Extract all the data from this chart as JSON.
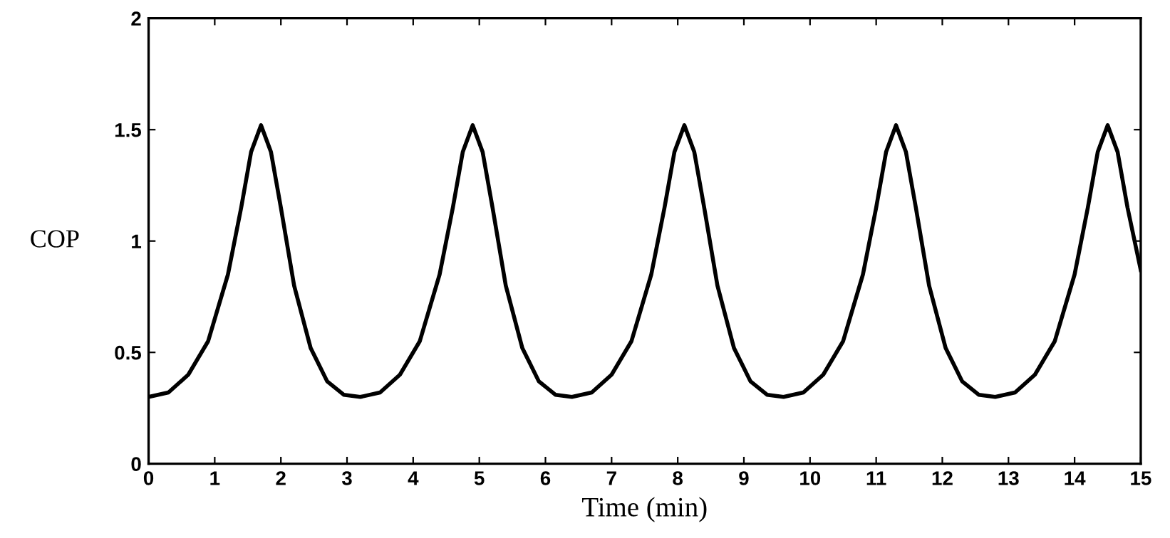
{
  "chart_data": {
    "type": "line",
    "xlabel": "Time (min)",
    "ylabel": "COP",
    "xlim": [
      0,
      15
    ],
    "ylim": [
      0,
      2
    ],
    "xticks": [
      0,
      1,
      2,
      3,
      4,
      5,
      6,
      7,
      8,
      9,
      10,
      11,
      12,
      13,
      14,
      15
    ],
    "yticks": [
      0,
      0.5,
      1,
      1.5,
      2
    ],
    "grid": false,
    "marker": "none",
    "line_style": "solid",
    "series": [
      {
        "color": "#000000",
        "x": [
          0,
          0.3,
          0.6,
          0.9,
          1.2,
          1.4,
          1.55,
          1.7,
          1.85,
          2.0,
          2.2,
          2.45,
          2.7,
          2.95,
          3.2,
          3.5,
          3.8,
          4.1,
          4.4,
          4.6,
          4.75,
          4.9,
          5.05,
          5.2,
          5.4,
          5.65,
          5.9,
          6.15,
          6.4,
          6.7,
          7.0,
          7.3,
          7.6,
          7.8,
          7.95,
          8.1,
          8.25,
          8.4,
          8.6,
          8.85,
          9.1,
          9.35,
          9.6,
          9.9,
          10.2,
          10.5,
          10.8,
          11.0,
          11.15,
          11.3,
          11.45,
          11.6,
          11.8,
          12.05,
          12.3,
          12.55,
          12.8,
          13.1,
          13.4,
          13.7,
          14.0,
          14.2,
          14.35,
          14.5,
          14.65,
          14.8,
          15.0
        ],
        "values": [
          0.3,
          0.32,
          0.4,
          0.55,
          0.85,
          1.15,
          1.4,
          1.52,
          1.4,
          1.15,
          0.8,
          0.52,
          0.37,
          0.31,
          0.3,
          0.32,
          0.4,
          0.55,
          0.85,
          1.15,
          1.4,
          1.52,
          1.4,
          1.15,
          0.8,
          0.52,
          0.37,
          0.31,
          0.3,
          0.32,
          0.4,
          0.55,
          0.85,
          1.15,
          1.4,
          1.52,
          1.4,
          1.15,
          0.8,
          0.52,
          0.37,
          0.31,
          0.3,
          0.32,
          0.4,
          0.55,
          0.85,
          1.15,
          1.4,
          1.52,
          1.4,
          1.15,
          0.8,
          0.52,
          0.37,
          0.31,
          0.3,
          0.32,
          0.4,
          0.55,
          0.85,
          1.15,
          1.4,
          1.52,
          1.4,
          1.15,
          0.87
        ]
      }
    ]
  }
}
